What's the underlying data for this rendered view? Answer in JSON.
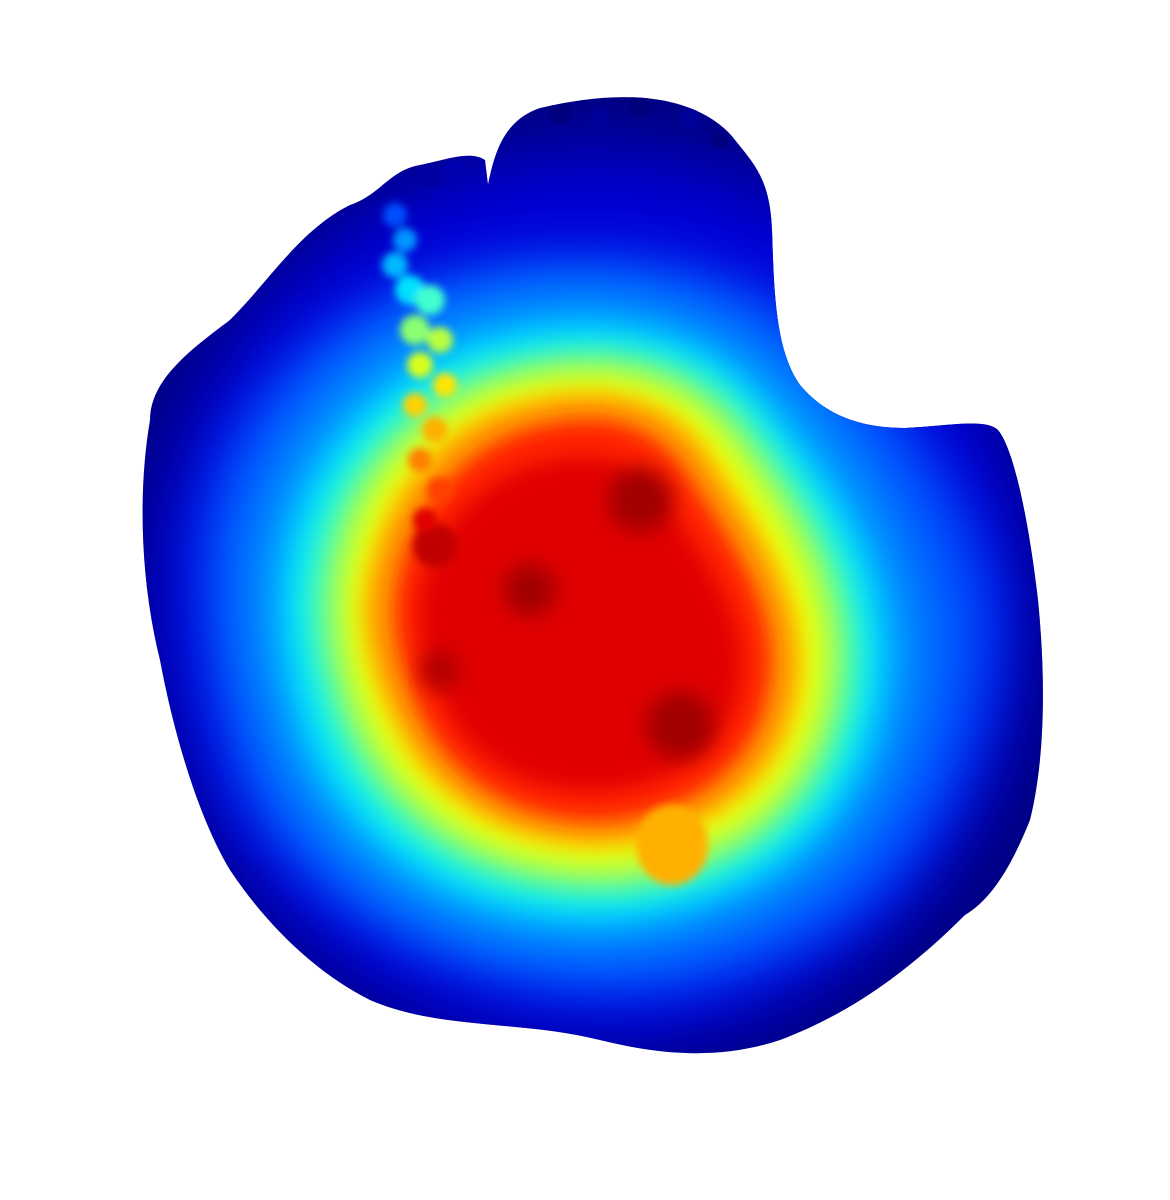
{
  "image": {
    "background": "#ffffff",
    "colormap": "jet",
    "colormap_stops": [
      {
        "offset": 0.0,
        "color": "#00007f"
      },
      {
        "offset": 0.11,
        "color": "#0000d8"
      },
      {
        "offset": 0.2,
        "color": "#0030ff"
      },
      {
        "offset": 0.32,
        "color": "#0096ff"
      },
      {
        "offset": 0.42,
        "color": "#00f0ff"
      },
      {
        "offset": 0.52,
        "color": "#6dff8a"
      },
      {
        "offset": 0.6,
        "color": "#d8ff1f"
      },
      {
        "offset": 0.66,
        "color": "#ffe400"
      },
      {
        "offset": 0.74,
        "color": "#ff9c00"
      },
      {
        "offset": 0.84,
        "color": "#ff3a00"
      },
      {
        "offset": 0.92,
        "color": "#e60000"
      },
      {
        "offset": 1.0,
        "color": "#9a0000"
      }
    ],
    "description_tag": "heatmap-blob"
  }
}
